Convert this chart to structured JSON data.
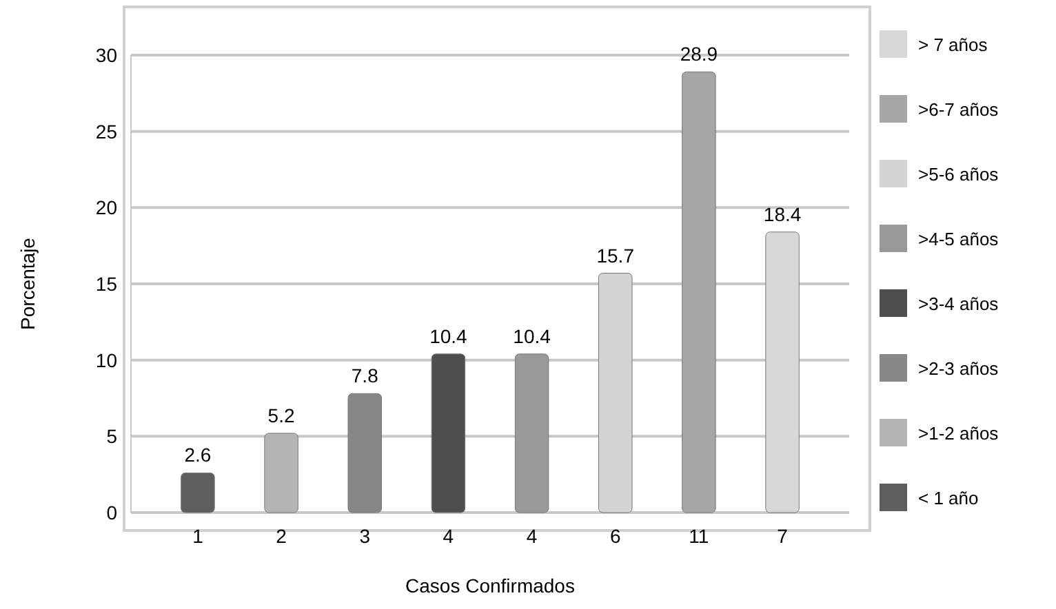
{
  "chart_data": {
    "type": "bar",
    "xlabel": "Casos Confirmados",
    "ylabel": "Porcentaje",
    "categories": [
      "1",
      "2",
      "3",
      "4",
      "4",
      "6",
      "11",
      "7"
    ],
    "series": [
      {
        "name": "< 1 año",
        "color": "#5e5e5e",
        "values": [
          2.6,
          null,
          null,
          null,
          null,
          null,
          null,
          null
        ]
      },
      {
        "name": ">1-2 años",
        "color": "#b4b4b4",
        "values": [
          null,
          5.2,
          null,
          null,
          null,
          null,
          null,
          null
        ]
      },
      {
        "name": ">2-3 años",
        "color": "#878787",
        "values": [
          null,
          null,
          7.8,
          null,
          null,
          null,
          null,
          null
        ]
      },
      {
        "name": ">3-4 años",
        "color": "#4e4e4e",
        "values": [
          null,
          null,
          null,
          10.4,
          null,
          null,
          null,
          null
        ]
      },
      {
        "name": ">4-5 años",
        "color": "#999999",
        "values": [
          null,
          null,
          null,
          null,
          10.4,
          null,
          null,
          null
        ]
      },
      {
        "name": ">5-6 años",
        "color": "#d4d4d4",
        "values": [
          null,
          null,
          null,
          null,
          null,
          15.7,
          null,
          null
        ]
      },
      {
        "name": ">6-7 años",
        "color": "#a6a6a6",
        "values": [
          null,
          null,
          null,
          null,
          null,
          null,
          28.9,
          null
        ]
      },
      {
        "name": "> 7 años",
        "color": "#d8d8d8",
        "values": [
          null,
          null,
          null,
          null,
          null,
          null,
          null,
          18.4
        ]
      }
    ],
    "ylim": [
      0,
      30
    ],
    "yticks": [
      0,
      5,
      10,
      15,
      20,
      25,
      30
    ],
    "grid": "y",
    "legend": "right",
    "data_labels": true
  }
}
